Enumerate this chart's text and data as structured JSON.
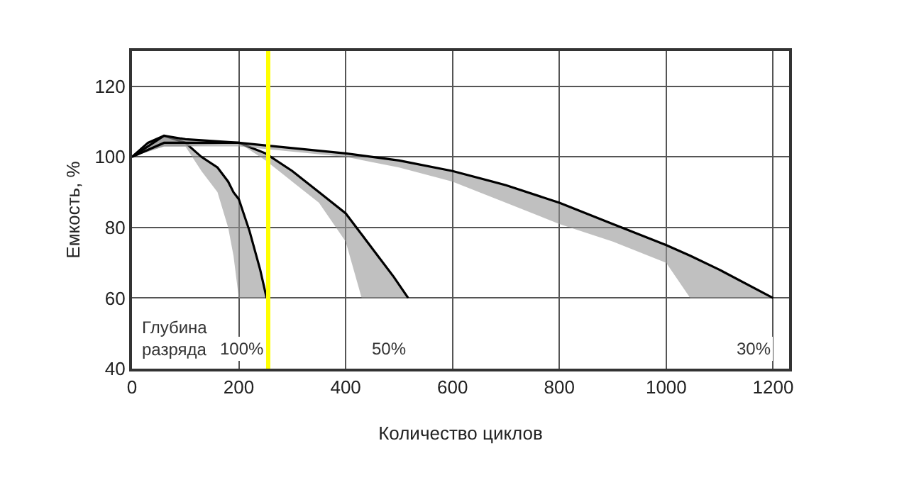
{
  "chart_data": {
    "type": "line",
    "xlabel": "Количество циклов",
    "ylabel": "Емкость, %",
    "xlim": [
      0,
      1230
    ],
    "ylim": [
      40,
      130
    ],
    "xticks": [
      0,
      200,
      400,
      600,
      800,
      1000,
      1200
    ],
    "yticks": [
      40,
      60,
      80,
      100,
      120
    ],
    "grid": true,
    "legend": false,
    "marker": "none",
    "line_style": "solid",
    "series": [
      {
        "name": "100%",
        "color": "#000000",
        "x": [
          0,
          30,
          60,
          100,
          130,
          160,
          180,
          190,
          200,
          220,
          240,
          252
        ],
        "values": [
          100,
          104,
          106,
          104,
          100,
          97,
          93,
          90,
          88,
          79,
          68,
          60
        ],
        "upper": [
          100,
          104,
          106,
          104,
          100,
          97,
          93,
          90,
          88,
          79,
          68,
          60
        ],
        "lower": [
          100,
          102,
          103,
          103,
          96,
          90,
          80,
          72,
          60,
          60,
          60,
          60
        ]
      },
      {
        "name": "50%",
        "color": "#000000",
        "x": [
          0,
          60,
          100,
          200,
          250,
          300,
          350,
          400,
          430,
          460,
          490,
          517
        ],
        "values": [
          100,
          106,
          105,
          104,
          101,
          96,
          90,
          84,
          78,
          72,
          66,
          60
        ],
        "upper": [
          100,
          106,
          105,
          104,
          101,
          96,
          90,
          84,
          78,
          72,
          66,
          60
        ],
        "lower": [
          100,
          103,
          103,
          104,
          99,
          93,
          87,
          76,
          60,
          60,
          60,
          60
        ]
      },
      {
        "name": "30%",
        "color": "#000000",
        "x": [
          0,
          60,
          200,
          400,
          500,
          600,
          700,
          800,
          900,
          1000,
          1045,
          1100,
          1200
        ],
        "values": [
          100,
          104,
          104,
          101,
          99,
          96,
          92,
          87,
          81,
          75,
          72,
          68,
          60
        ],
        "upper": [
          100,
          104,
          104,
          101,
          99,
          96,
          92,
          87,
          81,
          75,
          72,
          68,
          60
        ],
        "lower": [
          100,
          103,
          103,
          100,
          97,
          93,
          87,
          81,
          76,
          70,
          60,
          60,
          60
        ]
      }
    ],
    "ref_lines": [
      {
        "axis": "x",
        "value": 255,
        "color": "#ffff00"
      }
    ],
    "annotations": [
      "Глубина разряда"
    ]
  }
}
